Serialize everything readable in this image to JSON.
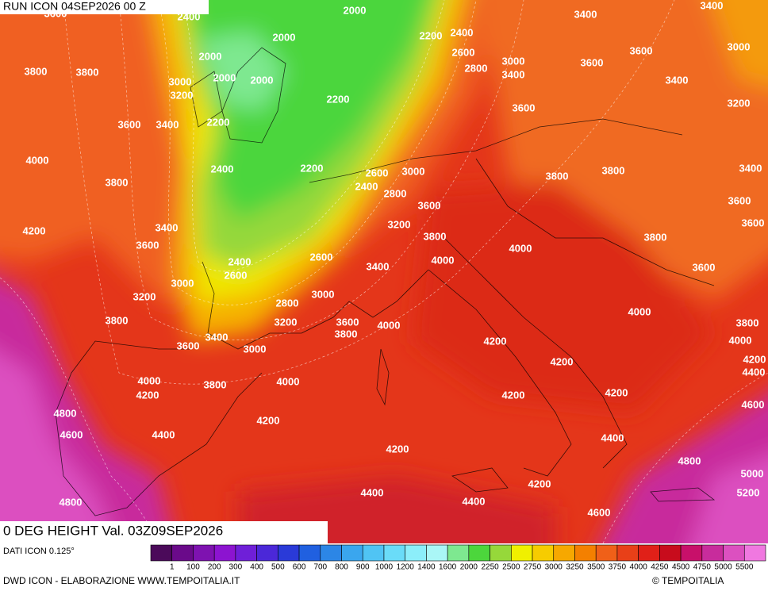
{
  "header": {
    "run": "RUN ICON 04SEP2026 00 Z"
  },
  "map": {
    "title": "0 DEG HEIGHT Val. 03Z09SEP2026",
    "contour_labels": [
      "3600",
      "2400",
      "2000",
      "2200",
      "2400",
      "3400",
      "3400",
      "2000",
      "2600",
      "3000",
      "3600",
      "3600",
      "3000",
      "3800",
      "3800",
      "2000",
      "2000",
      "2000",
      "2800",
      "3400",
      "3400",
      "3000",
      "3200",
      "2200",
      "3200",
      "3600",
      "3600",
      "3400",
      "2200",
      "4000",
      "2400",
      "2200",
      "2600",
      "3000",
      "3800",
      "3800",
      "3400",
      "3800",
      "2400",
      "2800",
      "3600",
      "3600",
      "4200",
      "3400",
      "3200",
      "3600",
      "3800",
      "3800",
      "3600",
      "4000",
      "4000",
      "2400",
      "2600",
      "3400",
      "2600",
      "3600",
      "3000",
      "3200",
      "3000",
      "2800",
      "4000",
      "3800",
      "3200",
      "3600",
      "4000",
      "3800",
      "3400",
      "3800",
      "3600",
      "3000",
      "4200",
      "4000",
      "4200",
      "4200",
      "4400",
      "4000",
      "4000",
      "3800",
      "4200",
      "4200",
      "4200",
      "4600",
      "4800",
      "4200",
      "4600",
      "4400",
      "4400",
      "4200",
      "4800",
      "5000",
      "4200",
      "4400",
      "5200",
      "4800",
      "4400",
      "4600"
    ]
  },
  "legend": {
    "source": "DATI ICON 0.125°",
    "labels": [
      "1",
      "100",
      "200",
      "300",
      "400",
      "500",
      "600",
      "700",
      "800",
      "900",
      "1000",
      "1200",
      "1400",
      "1600",
      "2000",
      "2250",
      "2500",
      "2750",
      "3000",
      "3250",
      "3500",
      "3750",
      "4000",
      "4250",
      "4500",
      "4750",
      "5000",
      "5500"
    ],
    "colors": [
      "#4b0a5a",
      "#6a0a8a",
      "#7e12b0",
      "#8c14d0",
      "#6f1fd8",
      "#4b28d8",
      "#2a3ad8",
      "#2060e0",
      "#2c86e6",
      "#3aa6ee",
      "#50c4f4",
      "#6adcf8",
      "#8ceefa",
      "#aaf6f6",
      "#7ee890",
      "#4cd63c",
      "#96d83a",
      "#f0f000",
      "#f6cc00",
      "#f6a800",
      "#f48000",
      "#f06018",
      "#e84018",
      "#e02018",
      "#c80c1c",
      "#c8106a",
      "#c82c9c",
      "#dc50c0",
      "#f078e0"
    ]
  },
  "footer": {
    "credit": "DWD ICON - ELABORAZIONE WWW.TEMPOITALIA.IT",
    "copyright": "© TEMPOITALIA"
  }
}
